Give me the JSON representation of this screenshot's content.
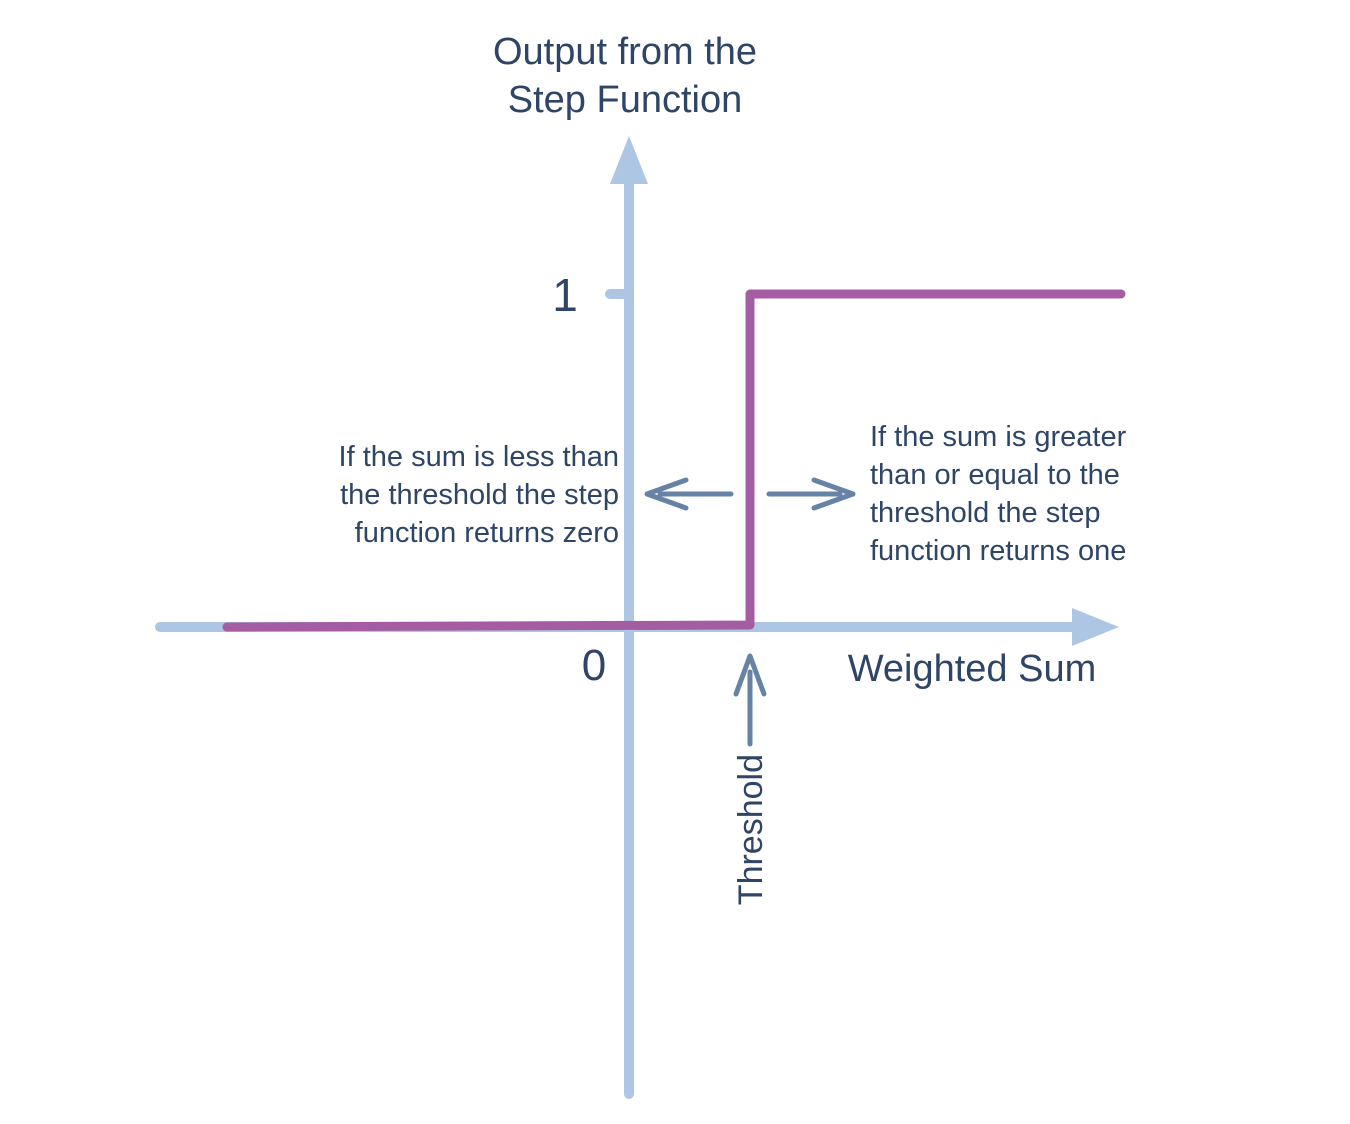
{
  "colors": {
    "axis": "#adc6e3",
    "step_line": "#a45ca3",
    "text": "#2f4566",
    "annotation_arrow": "#6683a6"
  },
  "y_axis": {
    "title_line1": "Output from the",
    "title_line2": "Step Function",
    "tick_one": "1",
    "tick_zero": "0"
  },
  "x_axis": {
    "title": "Weighted Sum"
  },
  "threshold": {
    "label": "Threshold"
  },
  "annotations": {
    "left": {
      "line1": "If the sum is less than",
      "line2": "the threshold the step",
      "line3": "function returns zero"
    },
    "right": {
      "line1": "If the sum is greater",
      "line2": "than or equal to the",
      "line3": "threshold the step",
      "line4": "function returns one"
    }
  }
}
